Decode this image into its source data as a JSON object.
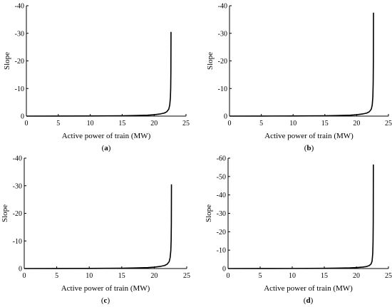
{
  "chart_data": [
    {
      "type": "line",
      "panel_label": "a",
      "xlabel": "Active power of train (MW)",
      "ylabel": "Slope",
      "xlim": [
        0,
        25
      ],
      "ylim": [
        0,
        -40
      ],
      "xticks": [
        "0",
        "5",
        "10",
        "15",
        "20",
        "25"
      ],
      "yticks": [
        "0",
        "-10",
        "-20",
        "-30",
        "-40"
      ],
      "x": [
        0,
        5,
        10,
        15,
        17,
        19,
        20,
        21,
        21.6,
        22.0,
        22.3,
        22.45,
        22.55,
        22.6,
        22.63,
        22.65
      ],
      "y": [
        0,
        -0.02,
        -0.05,
        -0.12,
        -0.2,
        -0.35,
        -0.5,
        -0.8,
        -1.1,
        -1.6,
        -2.5,
        -4.0,
        -6.5,
        -10,
        -16,
        -30.5
      ],
      "series": [
        {
          "values": "y"
        }
      ]
    },
    {
      "type": "line",
      "panel_label": "b",
      "xlabel": "Active power of train (MW)",
      "ylabel": "Slope",
      "xlim": [
        0,
        25
      ],
      "ylim": [
        0,
        -40
      ],
      "xticks": [
        "0",
        "5",
        "10",
        "15",
        "20",
        "25"
      ],
      "yticks": [
        "0",
        "-10",
        "-20",
        "-30",
        "-40"
      ],
      "x": [
        0,
        5,
        10,
        15,
        17,
        19,
        20,
        21,
        21.6,
        22.0,
        22.3,
        22.45,
        22.55,
        22.6,
        22.63,
        22.65
      ],
      "y": [
        0,
        -0.02,
        -0.05,
        -0.12,
        -0.2,
        -0.35,
        -0.5,
        -0.8,
        -1.1,
        -1.6,
        -2.5,
        -4.0,
        -7,
        -12,
        -20,
        -37.5
      ],
      "series": [
        {
          "values": "y"
        }
      ]
    },
    {
      "type": "line",
      "panel_label": "c",
      "xlabel": "Active power of train (MW)",
      "ylabel": "Slope",
      "xlim": [
        0,
        25
      ],
      "ylim": [
        0,
        -40
      ],
      "xticks": [
        "0",
        "5",
        "10",
        "15",
        "20",
        "25"
      ],
      "yticks": [
        "0",
        "-10",
        "-20",
        "-30",
        "-40"
      ],
      "x": [
        0,
        5,
        10,
        15,
        17,
        19,
        20,
        21,
        21.6,
        22.0,
        22.3,
        22.45,
        22.55,
        22.6,
        22.63,
        22.65
      ],
      "y": [
        0,
        -0.02,
        -0.05,
        -0.12,
        -0.2,
        -0.35,
        -0.5,
        -0.8,
        -1.1,
        -1.6,
        -2.5,
        -4.0,
        -6.5,
        -10,
        -16,
        -30.5
      ],
      "series": [
        {
          "values": "y"
        }
      ]
    },
    {
      "type": "line",
      "panel_label": "d",
      "xlabel": "Active power of train (MW)",
      "ylabel": "Slope",
      "xlim": [
        0,
        25
      ],
      "ylim": [
        0,
        -60
      ],
      "xticks": [
        "0",
        "5",
        "10",
        "15",
        "20",
        "25"
      ],
      "yticks": [
        "0",
        "-10",
        "-20",
        "-30",
        "-40",
        "-50",
        "-60"
      ],
      "x": [
        0,
        5,
        10,
        15,
        17,
        19,
        20,
        21,
        21.6,
        22.0,
        22.3,
        22.45,
        22.55,
        22.6,
        22.63,
        22.65
      ],
      "y": [
        0,
        -0.02,
        -0.05,
        -0.12,
        -0.2,
        -0.35,
        -0.5,
        -0.8,
        -1.1,
        -1.6,
        -2.5,
        -4.0,
        -8,
        -14,
        -25,
        -56.5
      ],
      "series": [
        {
          "values": "y"
        }
      ]
    }
  ]
}
